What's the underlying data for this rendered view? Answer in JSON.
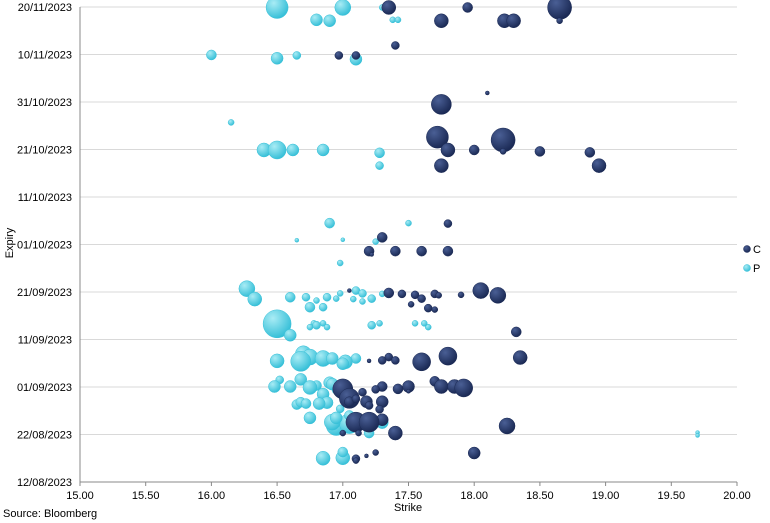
{
  "source_note": "Source: Bloomberg",
  "colors": {
    "C": "#1b2a55",
    "P": "#38c0d8",
    "gridline": "#d9d9d9",
    "axis": "#888888"
  },
  "chart_data": {
    "type": "bubble",
    "xlabel": "Strike",
    "ylabel": "Expiry",
    "xlim": [
      15.0,
      20.0
    ],
    "x_ticks": [
      "15.00",
      "15.50",
      "16.00",
      "16.50",
      "17.00",
      "17.50",
      "18.00",
      "18.50",
      "19.00",
      "19.50",
      "20.00"
    ],
    "y_ticks": [
      "12/08/2023",
      "22/08/2023",
      "01/09/2023",
      "11/09/2023",
      "21/09/2023",
      "01/10/2023",
      "11/10/2023",
      "21/10/2023",
      "31/10/2023",
      "10/11/2023",
      "20/11/2023"
    ],
    "y_tick_days": [
      0,
      10,
      20,
      30,
      40,
      50,
      60,
      70,
      80,
      90,
      100
    ],
    "y_tick_values": [
      0,
      10,
      20,
      30,
      40,
      50,
      60,
      70,
      80,
      90,
      100
    ],
    "ylim": [
      0,
      100
    ],
    "grid": true,
    "legend_position": "right",
    "legend": [
      "C",
      "P"
    ],
    "series": [
      {
        "name": "C",
        "points": [
          [
            17.35,
            99.9,
            7
          ],
          [
            17.95,
            99.9,
            5
          ],
          [
            18.65,
            99.9,
            12
          ],
          [
            17.75,
            97.1,
            7
          ],
          [
            18.23,
            97.1,
            7
          ],
          [
            18.3,
            97.1,
            7
          ],
          [
            18.65,
            97.1,
            3
          ],
          [
            17.4,
            91.9,
            4
          ],
          [
            16.97,
            89.8,
            4
          ],
          [
            17.1,
            89.8,
            4
          ],
          [
            18.1,
            81.9,
            2
          ],
          [
            17.75,
            79.5,
            10
          ],
          [
            17.72,
            72.6,
            11
          ],
          [
            18.22,
            72.0,
            12
          ],
          [
            17.8,
            69.9,
            7
          ],
          [
            18.0,
            69.9,
            5
          ],
          [
            18.22,
            69.6,
            3
          ],
          [
            18.5,
            69.6,
            5
          ],
          [
            18.88,
            69.4,
            5
          ],
          [
            18.95,
            66.6,
            7
          ],
          [
            17.75,
            66.6,
            7
          ],
          [
            17.8,
            54.4,
            4
          ],
          [
            17.3,
            51.5,
            5
          ],
          [
            17.2,
            48.6,
            5
          ],
          [
            17.4,
            48.6,
            5
          ],
          [
            17.6,
            48.6,
            5
          ],
          [
            17.8,
            48.6,
            5
          ],
          [
            17.22,
            47.9,
            2
          ],
          [
            17.05,
            40.3,
            2
          ],
          [
            18.05,
            40.3,
            8
          ],
          [
            18.18,
            39.3,
            8
          ],
          [
            17.35,
            39.8,
            5
          ],
          [
            17.45,
            39.6,
            4
          ],
          [
            17.55,
            39.4,
            4
          ],
          [
            17.7,
            39.6,
            4
          ],
          [
            17.73,
            39.3,
            3
          ],
          [
            17.9,
            39.4,
            3
          ],
          [
            17.6,
            38.6,
            4
          ],
          [
            17.52,
            37.4,
            3
          ],
          [
            17.65,
            36.6,
            4
          ],
          [
            17.7,
            36.3,
            3
          ],
          [
            18.32,
            31.6,
            5
          ],
          [
            17.8,
            26.5,
            9
          ],
          [
            18.35,
            26.2,
            7
          ],
          [
            17.6,
            25.3,
            9
          ],
          [
            17.2,
            25.5,
            2
          ],
          [
            17.35,
            26.3,
            4
          ],
          [
            17.4,
            25.6,
            4
          ],
          [
            17.3,
            25.6,
            4
          ],
          [
            17.7,
            21.2,
            5
          ],
          [
            17.75,
            20.1,
            7
          ],
          [
            17.85,
            20.1,
            7
          ],
          [
            17.92,
            19.8,
            9
          ],
          [
            17.5,
            20.1,
            6
          ],
          [
            17.3,
            20.1,
            5
          ],
          [
            17.25,
            19.5,
            4
          ],
          [
            17.42,
            19.6,
            5
          ],
          [
            17.5,
            19.1,
            2
          ],
          [
            17.15,
            18.9,
            4
          ],
          [
            17.0,
            19.6,
            10
          ],
          [
            17.05,
            17.6,
            10
          ],
          [
            17.05,
            16.9,
            5
          ],
          [
            17.18,
            16.9,
            6
          ],
          [
            17.3,
            16.9,
            6
          ],
          [
            17.1,
            17.5,
            4
          ],
          [
            17.2,
            16.1,
            4
          ],
          [
            17.28,
            15.3,
            4
          ],
          [
            17.08,
            13.5,
            4
          ],
          [
            17.3,
            13.1,
            6
          ],
          [
            17.1,
            12.6,
            10
          ],
          [
            17.2,
            12.6,
            10
          ],
          [
            17.4,
            10.3,
            7
          ],
          [
            18.25,
            11.8,
            8
          ],
          [
            17.0,
            10.3,
            3
          ],
          [
            17.12,
            10.3,
            3
          ],
          [
            17.18,
            5.5,
            2
          ],
          [
            17.1,
            4.9,
            4
          ],
          [
            17.1,
            4.5,
            3
          ],
          [
            18.0,
            6.1,
            6
          ],
          [
            17.25,
            6.2,
            3
          ]
        ]
      },
      {
        "name": "P",
        "points": [
          [
            16.5,
            99.9,
            11
          ],
          [
            17.0,
            99.9,
            8
          ],
          [
            17.3,
            99.9,
            3
          ],
          [
            16.8,
            97.3,
            6
          ],
          [
            16.9,
            97.1,
            6
          ],
          [
            17.38,
            97.3,
            3
          ],
          [
            17.42,
            97.3,
            3
          ],
          [
            16.0,
            89.9,
            5
          ],
          [
            16.5,
            89.2,
            6
          ],
          [
            16.65,
            89.8,
            4
          ],
          [
            17.1,
            89.0,
            6
          ],
          [
            16.15,
            75.7,
            3
          ],
          [
            16.4,
            69.9,
            7
          ],
          [
            16.5,
            69.9,
            9
          ],
          [
            16.62,
            69.9,
            6
          ],
          [
            16.85,
            69.9,
            6
          ],
          [
            17.28,
            69.3,
            5
          ],
          [
            17.28,
            66.6,
            4
          ],
          [
            16.9,
            54.5,
            5
          ],
          [
            16.65,
            50.9,
            2
          ],
          [
            17.0,
            51.0,
            2
          ],
          [
            17.5,
            54.5,
            3
          ],
          [
            17.25,
            50.6,
            3
          ],
          [
            16.98,
            46.1,
            3
          ],
          [
            16.27,
            40.7,
            8
          ],
          [
            16.33,
            38.5,
            7
          ],
          [
            16.6,
            38.9,
            5
          ],
          [
            16.72,
            38.9,
            4
          ],
          [
            16.8,
            38.2,
            3
          ],
          [
            16.88,
            38.9,
            4
          ],
          [
            16.98,
            39.7,
            3
          ],
          [
            16.95,
            38.6,
            3
          ],
          [
            17.1,
            40.3,
            4
          ],
          [
            17.15,
            39.7,
            4
          ],
          [
            17.3,
            39.6,
            3
          ],
          [
            17.22,
            38.6,
            4
          ],
          [
            17.15,
            38.0,
            3
          ],
          [
            17.08,
            38.5,
            3
          ],
          [
            16.75,
            36.8,
            5
          ],
          [
            16.85,
            36.8,
            4
          ],
          [
            16.5,
            33.3,
            14
          ],
          [
            16.6,
            30.9,
            6
          ],
          [
            16.78,
            33.4,
            3
          ],
          [
            16.8,
            33.0,
            4
          ],
          [
            16.85,
            33.4,
            3
          ],
          [
            16.88,
            32.6,
            3
          ],
          [
            16.75,
            32.6,
            3
          ],
          [
            17.22,
            33.0,
            4
          ],
          [
            17.28,
            33.4,
            3
          ],
          [
            17.55,
            33.4,
            3
          ],
          [
            17.65,
            32.6,
            3
          ],
          [
            17.62,
            33.4,
            3
          ],
          [
            16.7,
            27.0,
            8
          ],
          [
            16.75,
            26.3,
            8
          ],
          [
            16.85,
            26.0,
            8
          ],
          [
            16.5,
            25.5,
            7
          ],
          [
            16.68,
            25.4,
            10
          ],
          [
            16.92,
            26.0,
            6
          ],
          [
            17.1,
            26.0,
            5
          ],
          [
            17.02,
            25.3,
            7
          ],
          [
            17.0,
            24.9,
            6
          ],
          [
            16.52,
            21.5,
            4
          ],
          [
            16.68,
            21.6,
            6
          ],
          [
            16.8,
            20.3,
            5
          ],
          [
            16.75,
            19.9,
            7
          ],
          [
            16.6,
            20.1,
            6
          ],
          [
            16.48,
            20.1,
            6
          ],
          [
            16.9,
            20.9,
            6
          ],
          [
            16.92,
            20.6,
            6
          ],
          [
            17.0,
            20.6,
            3
          ],
          [
            16.85,
            18.5,
            6
          ],
          [
            16.95,
            19.3,
            4
          ],
          [
            16.88,
            16.7,
            6
          ],
          [
            16.82,
            16.5,
            6
          ],
          [
            16.65,
            16.3,
            5
          ],
          [
            16.68,
            16.8,
            5
          ],
          [
            16.98,
            15.4,
            4
          ],
          [
            16.75,
            13.5,
            6
          ],
          [
            16.95,
            11.9,
            10
          ],
          [
            17.05,
            12.3,
            10
          ],
          [
            17.2,
            11.6,
            6
          ],
          [
            16.92,
            12.6,
            8
          ],
          [
            17.05,
            14.0,
            5
          ],
          [
            16.72,
            16.5,
            5
          ],
          [
            16.85,
            5.0,
            7
          ],
          [
            17.0,
            5.1,
            7
          ],
          [
            17.0,
            6.3,
            5
          ],
          [
            17.2,
            10.3,
            5
          ],
          [
            16.95,
            13.5,
            6
          ],
          [
            17.3,
            12.5,
            6
          ],
          [
            19.7,
            10.4,
            2
          ],
          [
            19.7,
            9.8,
            2
          ]
        ]
      }
    ]
  }
}
